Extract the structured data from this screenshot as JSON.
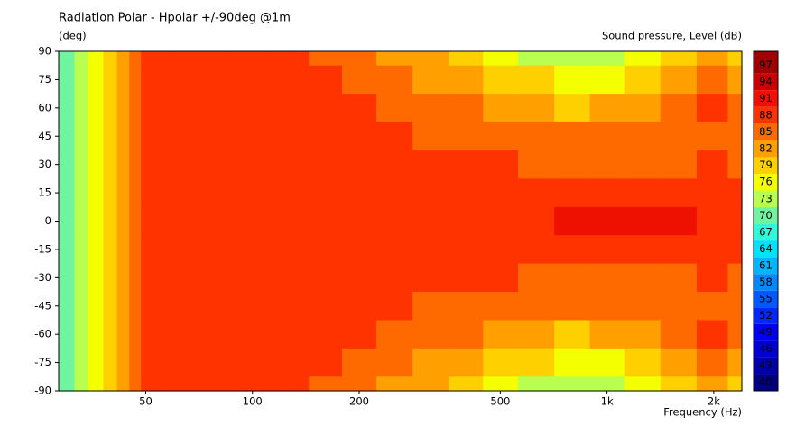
{
  "chart_data": {
    "type": "contour",
    "title": "Radiation Polar - Hpolar +/-90deg @1m",
    "y_label": "(deg)",
    "x_label": "Frequency  (Hz)",
    "log_x": true,
    "xlim": [
      28.4,
      2400
    ],
    "xticks": [
      50,
      100,
      200,
      500,
      {
        "value": 1000,
        "label": "1k"
      },
      {
        "value": 2000,
        "label": "2k"
      }
    ],
    "ylim": [
      -90,
      90
    ],
    "yticks": [
      90,
      75,
      60,
      45,
      30,
      15,
      0,
      -15,
      -30,
      -45,
      -60,
      -75,
      -90
    ],
    "x": [
      30,
      33,
      36,
      40,
      43,
      47,
      50,
      70,
      100,
      130,
      160,
      200,
      250,
      320,
      400,
      500,
      630,
      800,
      1000,
      1250,
      1600,
      2000,
      2400
    ],
    "y": [
      90,
      75,
      60,
      45,
      30,
      15,
      0,
      -15,
      -30,
      -45,
      -60,
      -75,
      -90
    ],
    "z": [
      [
        69,
        72,
        75,
        78,
        82,
        85,
        88,
        88,
        88,
        88,
        85,
        85,
        82,
        82,
        79,
        76,
        73,
        73,
        73,
        76,
        79,
        82,
        79
      ],
      [
        69,
        72,
        75,
        78,
        82,
        85,
        88,
        88,
        88,
        88,
        88,
        85,
        85,
        82,
        82,
        79,
        79,
        76,
        76,
        79,
        82,
        85,
        82
      ],
      [
        69,
        72,
        75,
        78,
        82,
        85,
        88,
        88,
        88,
        88,
        88,
        88,
        85,
        85,
        85,
        82,
        82,
        79,
        82,
        82,
        85,
        88,
        85
      ],
      [
        69,
        72,
        75,
        78,
        82,
        85,
        88,
        88,
        88,
        88,
        88,
        88,
        88,
        85,
        85,
        85,
        85,
        85,
        85,
        85,
        85,
        85,
        85
      ],
      [
        69,
        72,
        75,
        78,
        82,
        85,
        88,
        88,
        88,
        88,
        88,
        88,
        88,
        88,
        88,
        88,
        85,
        85,
        85,
        85,
        85,
        88,
        85
      ],
      [
        69,
        72,
        75,
        78,
        82,
        85,
        88,
        88,
        88,
        88,
        88,
        88,
        88,
        88,
        88,
        88,
        88,
        88,
        88,
        88,
        88,
        88,
        88
      ],
      [
        69,
        72,
        75,
        78,
        82,
        85,
        88,
        88,
        88,
        88,
        88,
        88,
        88,
        88,
        88,
        88,
        88,
        91,
        91,
        91,
        91,
        88,
        88
      ],
      [
        69,
        72,
        75,
        78,
        82,
        85,
        88,
        88,
        88,
        88,
        88,
        88,
        88,
        88,
        88,
        88,
        88,
        88,
        88,
        88,
        88,
        88,
        88
      ],
      [
        69,
        72,
        75,
        78,
        82,
        85,
        88,
        88,
        88,
        88,
        88,
        88,
        88,
        88,
        88,
        88,
        85,
        85,
        85,
        85,
        85,
        88,
        85
      ],
      [
        69,
        72,
        75,
        78,
        82,
        85,
        88,
        88,
        88,
        88,
        88,
        88,
        88,
        85,
        85,
        85,
        85,
        85,
        85,
        85,
        85,
        85,
        85
      ],
      [
        69,
        72,
        75,
        78,
        82,
        85,
        88,
        88,
        88,
        88,
        88,
        88,
        85,
        85,
        85,
        82,
        82,
        79,
        82,
        82,
        85,
        88,
        85
      ],
      [
        69,
        72,
        75,
        78,
        82,
        85,
        88,
        88,
        88,
        88,
        88,
        85,
        85,
        82,
        82,
        79,
        79,
        76,
        76,
        79,
        82,
        85,
        82
      ],
      [
        69,
        72,
        75,
        78,
        82,
        85,
        88,
        88,
        88,
        88,
        85,
        85,
        82,
        82,
        79,
        76,
        73,
        73,
        73,
        76,
        79,
        82,
        79
      ]
    ],
    "colorbar": {
      "label": "Sound pressure, Level  (dB)",
      "lim": [
        38.5,
        99.5
      ],
      "ticks": [
        40,
        43,
        46,
        49,
        52,
        55,
        58,
        61,
        64,
        67,
        70,
        73,
        76,
        79,
        82,
        85,
        88,
        91,
        94,
        97
      ],
      "colors": [
        "#000080",
        "#0000a8",
        "#0000d0",
        "#0000f5",
        "#0028ff",
        "#0058ff",
        "#0088ff",
        "#00b4ff",
        "#00e0ff",
        "#30f8d8",
        "#70f4a0",
        "#b8ff50",
        "#f4ff00",
        "#ffd000",
        "#ffa000",
        "#ff6a00",
        "#ff3300",
        "#ee1000",
        "#cc0000",
        "#a00000"
      ]
    }
  }
}
